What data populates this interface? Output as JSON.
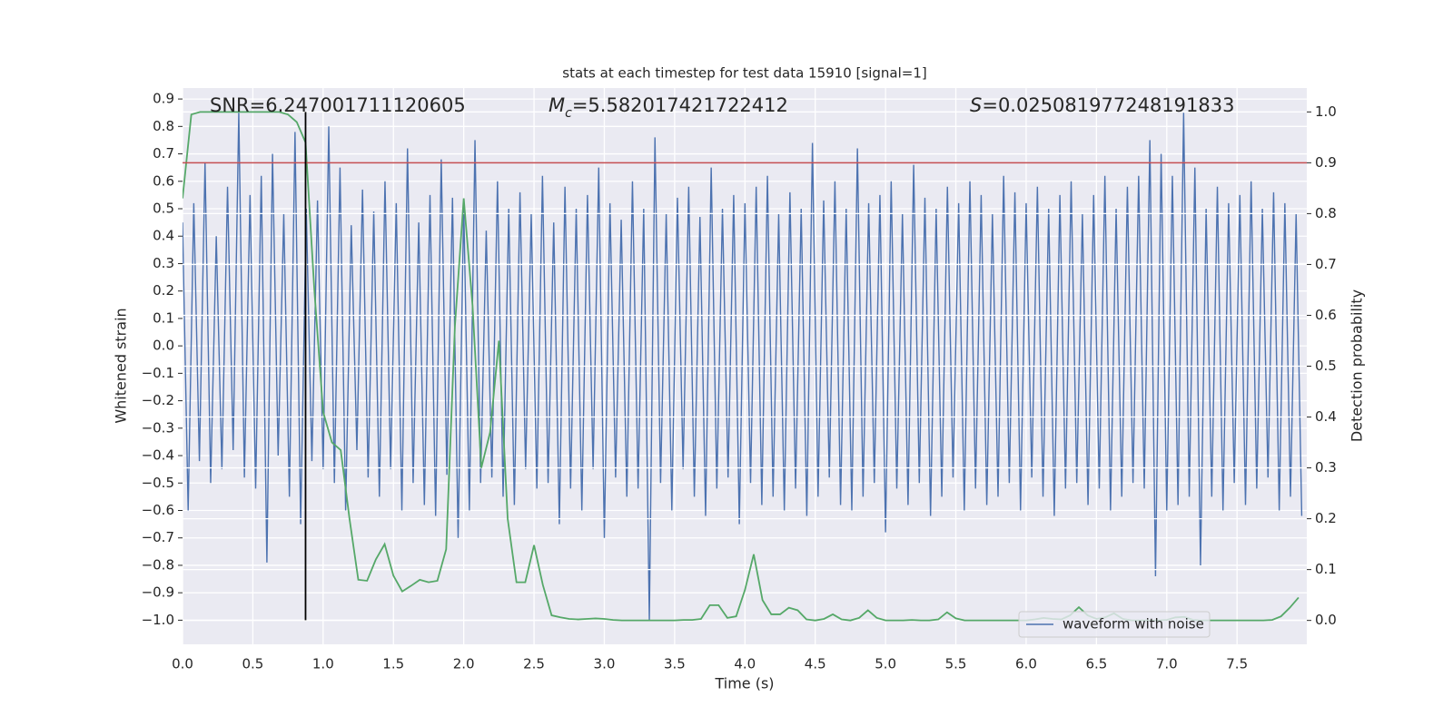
{
  "chart_data": {
    "type": "line",
    "title": "stats at each timestep for test data 15910 [signal=1]",
    "xlabel": "Time (s)",
    "ylabel": "Whitened strain",
    "y2label": "Detection probability",
    "annotations": {
      "snr": "SNR=6.247001711120605",
      "mc": {
        "symbol": "M",
        "subscript": "c",
        "text": "=5.582017421722412"
      },
      "s": {
        "symbol": "S",
        "text": "=0.025081977248191833"
      }
    },
    "xlim": [
      0,
      7.996
    ],
    "ylim": [
      -1.088,
      0.94
    ],
    "y2lim": [
      -0.047,
      1.047
    ],
    "xticks": [
      {
        "value": 0,
        "label": "0.0"
      },
      0.5,
      {
        "value": 1,
        "label": "1.0"
      },
      1.5,
      {
        "value": 2,
        "label": "2.0"
      },
      2.5,
      {
        "value": 3,
        "label": "3.0"
      },
      3.5,
      {
        "value": 4,
        "label": "4.0"
      },
      4.5,
      {
        "value": 5,
        "label": "5.0"
      },
      5.5,
      {
        "value": 6,
        "label": "6.0"
      },
      6.5,
      {
        "value": 7,
        "label": "7.0"
      },
      7.5
    ],
    "yticks": [
      {
        "value": -1,
        "label": "−1.0"
      },
      {
        "value": -0.9,
        "label": "−0.9"
      },
      {
        "value": -0.8,
        "label": "−0.8"
      },
      {
        "value": -0.7,
        "label": "−0.7"
      },
      {
        "value": -0.6,
        "label": "−0.6"
      },
      {
        "value": -0.5,
        "label": "−0.5"
      },
      {
        "value": -0.4,
        "label": "−0.4"
      },
      {
        "value": -0.3,
        "label": "−0.3"
      },
      {
        "value": -0.2,
        "label": "−0.2"
      },
      {
        "value": -0.1,
        "label": "−0.1"
      },
      {
        "value": 0,
        "label": "0.0"
      },
      0.1,
      0.2,
      0.3,
      0.4,
      0.5,
      0.6,
      0.7,
      0.8,
      0.9
    ],
    "y2ticks": [
      {
        "value": 0,
        "label": "0.0"
      },
      0.1,
      0.2,
      0.3,
      0.4,
      0.5,
      0.6,
      0.7,
      0.8,
      0.9,
      {
        "value": 1,
        "label": "1.0"
      }
    ],
    "grid": true,
    "legend": "lower right",
    "threshold": 0.9,
    "threshold_color": "#c44e52",
    "marker_x": 0.875,
    "marker_color": "#000000",
    "series": [
      {
        "name": "waveform with noise",
        "color": "#4c72b0",
        "x": [
          0,
          0.04,
          0.08,
          0.12,
          0.16,
          0.2,
          0.24,
          0.28,
          0.32,
          0.36,
          0.4,
          0.44,
          0.48,
          0.52,
          0.56,
          0.6,
          0.64,
          0.68,
          0.72,
          0.76,
          0.8,
          0.84,
          0.88,
          0.92,
          0.96,
          1,
          1.04,
          1.08,
          1.12,
          1.16,
          1.2,
          1.24,
          1.28,
          1.32,
          1.36,
          1.4,
          1.44,
          1.48,
          1.52,
          1.56,
          1.6,
          1.64,
          1.68,
          1.72,
          1.76,
          1.8,
          1.84,
          1.88,
          1.92,
          1.96,
          2,
          2.04,
          2.08,
          2.12,
          2.16,
          2.2,
          2.24,
          2.28,
          2.32,
          2.36,
          2.4,
          2.44,
          2.48,
          2.52,
          2.56,
          2.6,
          2.64,
          2.68,
          2.72,
          2.76,
          2.8,
          2.84,
          2.88,
          2.92,
          2.96,
          3,
          3.04,
          3.08,
          3.12,
          3.16,
          3.2,
          3.24,
          3.28,
          3.32,
          3.36,
          3.4,
          3.44,
          3.48,
          3.52,
          3.56,
          3.6,
          3.64,
          3.68,
          3.72,
          3.76,
          3.8,
          3.84,
          3.88,
          3.92,
          3.96,
          4,
          4.04,
          4.08,
          4.12,
          4.16,
          4.2,
          4.24,
          4.28,
          4.32,
          4.36,
          4.4,
          4.44,
          4.48,
          4.52,
          4.56,
          4.6,
          4.64,
          4.68,
          4.72,
          4.76,
          4.8,
          4.84,
          4.88,
          4.92,
          4.96,
          5,
          5.04,
          5.08,
          5.12,
          5.16,
          5.2,
          5.24,
          5.28,
          5.32,
          5.36,
          5.4,
          5.44,
          5.48,
          5.52,
          5.56,
          5.6,
          5.64,
          5.68,
          5.72,
          5.76,
          5.8,
          5.84,
          5.88,
          5.92,
          5.96,
          6,
          6.04,
          6.08,
          6.12,
          6.16,
          6.2,
          6.24,
          6.28,
          6.32,
          6.36,
          6.4,
          6.44,
          6.48,
          6.52,
          6.56,
          6.6,
          6.64,
          6.68,
          6.72,
          6.76,
          6.8,
          6.84,
          6.88,
          6.92,
          6.96,
          7,
          7.04,
          7.08,
          7.12,
          7.16,
          7.2,
          7.24,
          7.28,
          7.32,
          7.36,
          7.4,
          7.44,
          7.48,
          7.52,
          7.56,
          7.6,
          7.64,
          7.68,
          7.72,
          7.76,
          7.8,
          7.84,
          7.88,
          7.92,
          7.96
        ],
        "values": [
          0.45,
          -0.6,
          0.52,
          -0.42,
          0.67,
          -0.5,
          0.4,
          -0.45,
          0.58,
          -0.38,
          0.85,
          -0.48,
          0.55,
          -0.52,
          0.62,
          -0.79,
          0.7,
          -0.4,
          0.48,
          -0.55,
          0.78,
          -0.65,
          0.5,
          -0.42,
          0.53,
          -0.45,
          0.8,
          -0.5,
          0.65,
          -0.6,
          0.44,
          -0.38,
          0.57,
          -0.48,
          0.49,
          -0.55,
          0.6,
          -0.45,
          0.52,
          -0.6,
          0.72,
          -0.5,
          0.45,
          -0.58,
          0.55,
          -0.62,
          0.68,
          -0.47,
          0.54,
          -0.7,
          0.51,
          -0.6,
          0.75,
          -0.5,
          0.42,
          -0.48,
          0.6,
          -0.55,
          0.5,
          -0.58,
          0.56,
          -0.45,
          0.48,
          -0.52,
          0.62,
          -0.5,
          0.45,
          -0.65,
          0.58,
          -0.52,
          0.5,
          -0.6,
          0.55,
          -0.45,
          0.65,
          -0.7,
          0.52,
          -0.48,
          0.46,
          -0.55,
          0.6,
          -0.52,
          0.5,
          -1.0,
          0.76,
          -0.5,
          0.48,
          -0.6,
          0.54,
          -0.45,
          0.58,
          -0.55,
          0.47,
          -0.62,
          0.65,
          -0.52,
          0.5,
          -0.48,
          0.55,
          -0.65,
          0.52,
          -0.5,
          0.58,
          -0.58,
          0.62,
          -0.55,
          0.48,
          -0.6,
          0.56,
          -0.52,
          0.5,
          -0.62,
          0.74,
          -0.55,
          0.53,
          -0.48,
          0.6,
          -0.58,
          0.5,
          -0.6,
          0.72,
          -0.55,
          0.52,
          -0.5,
          0.55,
          -0.68,
          0.6,
          -0.52,
          0.48,
          -0.58,
          0.66,
          -0.5,
          0.54,
          -0.62,
          0.5,
          -0.55,
          0.58,
          -0.48,
          0.52,
          -0.6,
          0.6,
          -0.52,
          0.55,
          -0.58,
          0.48,
          -0.55,
          0.62,
          -0.5,
          0.56,
          -0.6,
          0.52,
          -0.48,
          0.58,
          -0.55,
          0.5,
          -0.62,
          0.55,
          -0.52,
          0.6,
          -0.5,
          0.48,
          -0.58,
          0.55,
          -0.52,
          0.62,
          -0.6,
          0.5,
          -0.55,
          0.58,
          -0.5,
          0.62,
          -0.52,
          0.75,
          -0.84,
          0.7,
          -0.6,
          0.62,
          -0.58,
          0.85,
          -0.55,
          0.65,
          -0.8,
          0.5,
          -0.55,
          0.58,
          -0.6,
          0.52,
          -0.5,
          0.55,
          -0.58,
          0.6,
          -0.52,
          0.5,
          -0.48,
          0.56,
          -0.6,
          0.52,
          -0.55,
          0.48,
          -0.62
        ]
      },
      {
        "color": "#55a868",
        "axis": "y2",
        "x": [
          0,
          0.0625,
          0.125,
          0.1875,
          0.25,
          0.3125,
          0.375,
          0.4375,
          0.5,
          0.5625,
          0.625,
          0.6875,
          0.75,
          0.8125,
          0.875,
          0.9375,
          1,
          1.0625,
          1.125,
          1.1875,
          1.25,
          1.3125,
          1.375,
          1.4375,
          1.5,
          1.5625,
          1.625,
          1.6875,
          1.75,
          1.8125,
          1.875,
          1.9375,
          2,
          2.0625,
          2.125,
          2.1875,
          2.25,
          2.3125,
          2.375,
          2.4375,
          2.5,
          2.5625,
          2.625,
          2.6875,
          2.75,
          2.8125,
          2.875,
          2.9375,
          3,
          3.0625,
          3.125,
          3.1875,
          3.25,
          3.3125,
          3.375,
          3.4375,
          3.5,
          3.5625,
          3.625,
          3.6875,
          3.75,
          3.8125,
          3.875,
          3.9375,
          4,
          4.0625,
          4.125,
          4.1875,
          4.25,
          4.3125,
          4.375,
          4.4375,
          4.5,
          4.5625,
          4.625,
          4.6875,
          4.75,
          4.8125,
          4.875,
          4.9375,
          5,
          5.0625,
          5.125,
          5.1875,
          5.25,
          5.3125,
          5.375,
          5.4375,
          5.5,
          5.5625,
          5.625,
          5.6875,
          5.75,
          5.8125,
          5.875,
          5.9375,
          6,
          6.0625,
          6.125,
          6.1875,
          6.25,
          6.3125,
          6.375,
          6.4375,
          6.5,
          6.5625,
          6.625,
          6.6875,
          6.75,
          6.8125,
          6.875,
          6.9375,
          7,
          7.0625,
          7.125,
          7.1875,
          7.25,
          7.3125,
          7.375,
          7.4375,
          7.5,
          7.5625,
          7.625,
          7.6875,
          7.75,
          7.8125,
          7.875,
          7.9375
        ],
        "values": [
          0.83,
          0.995,
          1.0,
          1.0,
          1.0,
          1.0,
          1.0,
          1.0,
          1.0,
          1.0,
          1.0,
          1.0,
          0.995,
          0.98,
          0.94,
          0.65,
          0.41,
          0.35,
          0.335,
          0.2,
          0.08,
          0.078,
          0.12,
          0.15,
          0.088,
          0.057,
          0.068,
          0.08,
          0.075,
          0.078,
          0.14,
          0.58,
          0.83,
          0.62,
          0.3,
          0.37,
          0.55,
          0.2,
          0.075,
          0.075,
          0.148,
          0.07,
          0.01,
          0.006,
          0.003,
          0.002,
          0.003,
          0.004,
          0.003,
          0.001,
          0,
          0,
          0,
          0,
          0,
          0,
          0,
          0.001,
          0.001,
          0.003,
          0.03,
          0.03,
          0.005,
          0.008,
          0.06,
          0.13,
          0.04,
          0.012,
          0.012,
          0.025,
          0.02,
          0.002,
          0,
          0.003,
          0.012,
          0.002,
          0,
          0.005,
          0.02,
          0.005,
          0,
          0,
          0,
          0.001,
          0,
          0,
          0.002,
          0.016,
          0.004,
          0,
          0,
          0,
          0,
          0,
          0,
          0,
          0,
          0.002,
          0.005,
          0.003,
          0.002,
          0.01,
          0.026,
          0.01,
          0.003,
          0.006,
          0.014,
          0.003,
          0,
          0,
          0,
          0,
          0.001,
          0.006,
          0.007,
          0.001,
          0,
          0,
          0,
          0,
          0,
          0,
          0,
          0,
          0.001,
          0.008,
          0.025,
          0.045
        ]
      }
    ]
  }
}
